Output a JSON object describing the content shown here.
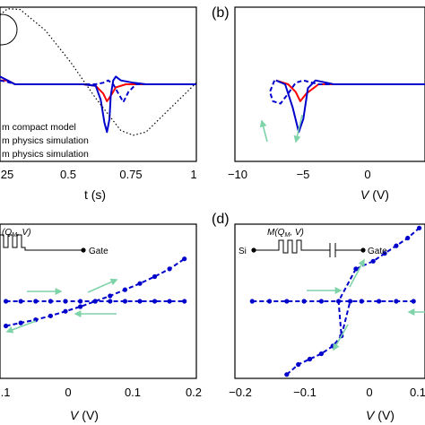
{
  "panels": [
    {
      "id": "a",
      "label": "",
      "xlabel": "t (s)",
      "ylabel": "",
      "xticks": [
        "25",
        "0.5",
        "0.75",
        "1"
      ],
      "legend": [
        "m compact model",
        "m physics simulation",
        "m physics simulation"
      ]
    },
    {
      "id": "b",
      "label": "(b)",
      "xlabel": "V (V)",
      "xticks": [
        "−10",
        "−5",
        "0"
      ]
    },
    {
      "id": "c",
      "label": "",
      "xlabel": "V (V)",
      "xticks": [
        ".1",
        "0",
        "0.1",
        "0.2"
      ],
      "inset_formula": "M(Q_M, V)",
      "inset_terminal": "Gate"
    },
    {
      "id": "d",
      "label": "(d)",
      "xlabel": "V (V)",
      "xticks": [
        "−0.2",
        "−0.1",
        "0",
        "0.1"
      ],
      "inset_formula": "M(Q_M, V)",
      "inset_source": "Si",
      "inset_terminal": "Gate"
    }
  ],
  "chart_data": [
    {
      "type": "line",
      "title": "",
      "xlabel": "t (s)",
      "ylabel": "",
      "xlim": [
        0.22,
        1.0
      ],
      "ylim": [
        -1.0,
        1.0
      ],
      "series": [
        {
          "name": "m compact model",
          "color": "#ff0000",
          "style": "solid",
          "x": [
            0.22,
            0.25,
            0.28,
            0.33,
            0.55,
            0.6,
            0.63,
            0.645,
            0.66,
            0.68,
            0.72,
            0.8,
            1.0
          ],
          "y": [
            0.05,
            0.05,
            0.0,
            0.0,
            0.0,
            -0.02,
            -0.12,
            -0.22,
            -0.15,
            -0.04,
            0.0,
            0.0,
            0.0
          ]
        },
        {
          "name": "m physics simulation",
          "color": "#0000cc",
          "style": "solid",
          "x": [
            0.22,
            0.25,
            0.28,
            0.33,
            0.55,
            0.6,
            0.62,
            0.635,
            0.645,
            0.655,
            0.66,
            0.67,
            0.68,
            0.7,
            0.75,
            0.8,
            1.0
          ],
          "y": [
            0.1,
            0.05,
            0.0,
            0.0,
            0.0,
            -0.02,
            -0.2,
            -0.5,
            -0.62,
            -0.45,
            -0.15,
            0.05,
            0.1,
            0.05,
            0.02,
            0.0,
            0.0
          ]
        },
        {
          "name": "m physics simulation",
          "color": "#0000cc",
          "style": "dashed",
          "x": [
            0.22,
            0.25,
            0.28,
            0.33,
            0.6,
            0.63,
            0.65,
            0.67,
            0.69,
            0.71,
            0.73,
            0.76,
            0.8,
            1.0
          ],
          "y": [
            0.05,
            0.03,
            0.0,
            0.0,
            0.0,
            0.02,
            0.05,
            0.0,
            -0.12,
            -0.23,
            -0.1,
            0.0,
            0.0,
            0.0
          ]
        },
        {
          "name": "",
          "color": "#000000",
          "style": "dotted",
          "x": [
            0.22,
            0.25,
            0.3,
            0.4,
            0.5,
            0.6,
            0.7,
            0.75,
            0.8,
            0.9,
            1.0
          ],
          "y": [
            0.9,
            0.98,
            0.97,
            0.7,
            0.29,
            -0.18,
            -0.6,
            -0.66,
            -0.62,
            -0.3,
            0.02
          ]
        }
      ]
    },
    {
      "type": "line",
      "title": "",
      "xlabel": "V (V)",
      "ylabel": "",
      "xlim": [
        -10.5,
        2.0
      ],
      "ylim": [
        -1.0,
        1.0
      ],
      "series": [
        {
          "name": "",
          "color": "#ff0000",
          "style": "solid",
          "x": [
            -7.8,
            -7.0,
            -6.5,
            -6.2,
            -5.8,
            -5.0,
            -3.0,
            2.0
          ],
          "y": [
            0.05,
            0.0,
            -0.1,
            -0.22,
            -0.12,
            0.0,
            0.0,
            0.0
          ]
        },
        {
          "name": "",
          "color": "#0000cc",
          "style": "solid",
          "x": [
            -7.8,
            -7.2,
            -6.7,
            -6.3,
            -6.0,
            -5.7,
            -5.2,
            -4.0,
            2.0
          ],
          "y": [
            0.05,
            0.0,
            -0.3,
            -0.62,
            -0.45,
            -0.05,
            0.05,
            0.0,
            0.0
          ]
        },
        {
          "name": "",
          "color": "#0000cc",
          "style": "dashed",
          "x": [
            -7.9,
            -8.2,
            -8.0,
            -7.5,
            -7.0,
            -6.5,
            -6.0,
            -5.0,
            2.0
          ],
          "y": [
            0.05,
            -0.1,
            -0.22,
            -0.25,
            -0.12,
            0.02,
            0.05,
            0.0,
            0.0
          ]
        }
      ]
    },
    {
      "type": "line",
      "title": "",
      "xlabel": "V (V)",
      "ylabel": "",
      "xlim": [
        -0.11,
        0.22
      ],
      "ylim": [
        -1.0,
        1.0
      ],
      "series": [
        {
          "name": "",
          "color": "#0000cc",
          "style": "dashed-markers",
          "x": [
            -0.1,
            -0.075,
            -0.05,
            -0.025,
            0.0,
            0.025,
            0.05,
            0.075,
            0.1,
            0.125,
            0.15,
            0.175,
            0.2
          ],
          "y": [
            -0.32,
            -0.28,
            -0.24,
            -0.19,
            -0.13,
            -0.07,
            0.0,
            0.07,
            0.15,
            0.23,
            0.32,
            0.42,
            0.55
          ]
        },
        {
          "name": "",
          "color": "#0000cc",
          "style": "dashed-markers",
          "x": [
            -0.1,
            -0.075,
            -0.05,
            -0.025,
            0.0,
            0.025,
            0.05,
            0.075,
            0.1,
            0.125,
            0.15,
            0.175,
            0.2
          ],
          "y": [
            0.0,
            0.0,
            0.0,
            0.0,
            0.0,
            0.0,
            0.0,
            0.0,
            0.0,
            0.0,
            0.0,
            0.0,
            0.0
          ]
        }
      ]
    },
    {
      "type": "line",
      "title": "",
      "xlabel": "V (V)",
      "ylabel": "",
      "xlim": [
        -0.2,
        0.13
      ],
      "ylim": [
        -1.0,
        1.0
      ],
      "series": [
        {
          "name": "",
          "color": "#0000cc",
          "style": "dashed-markers",
          "x": [
            -0.17,
            -0.14,
            -0.11,
            -0.08,
            -0.05,
            -0.02,
            0.0,
            0.02,
            0.05,
            0.08,
            0.11
          ],
          "y": [
            0.0,
            0.0,
            0.0,
            0.0,
            0.0,
            0.0,
            0.0,
            0.0,
            0.0,
            0.0,
            0.0
          ]
        },
        {
          "name": "",
          "color": "#0000cc",
          "style": "dashed-markers",
          "x": [
            0.01,
            0.04,
            0.06,
            0.08,
            0.1,
            0.12
          ],
          "y": [
            0.42,
            0.52,
            0.62,
            0.72,
            0.82,
            0.95
          ]
        },
        {
          "name": "",
          "color": "#0000cc",
          "style": "dashed-markers",
          "x": [
            -0.11,
            -0.09,
            -0.07,
            -0.05,
            -0.03,
            -0.015
          ],
          "y": [
            -0.95,
            -0.82,
            -0.75,
            -0.68,
            -0.58,
            -0.45
          ]
        },
        {
          "name": "",
          "color": "#0000cc",
          "style": "dashed",
          "x": [
            0.01,
            -0.02,
            -0.015,
            0.0
          ],
          "y": [
            0.42,
            0.0,
            -0.45,
            0.0
          ]
        }
      ]
    }
  ]
}
